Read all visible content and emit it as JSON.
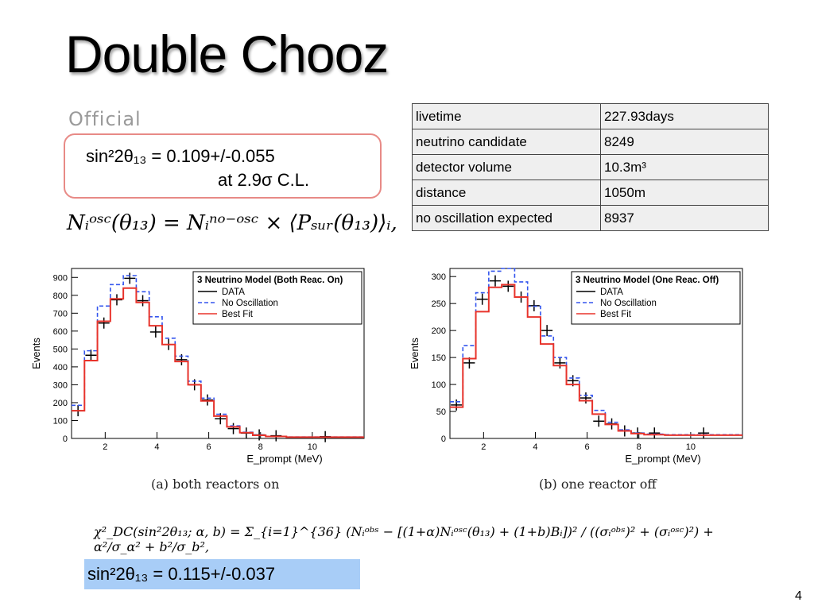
{
  "slide": {
    "title": "Double Chooz",
    "official_label": "Official",
    "result_line1": "sin²2θ₁₃ = 0.109+/-0.055",
    "result_line2": "at 2.9σ C.L.",
    "equation_osc": "Nᵢᵒˢᶜ(θ₁₃) = Nᵢⁿᵒ⁻ᵒˢᶜ × ⟨Pₛᵤᵣ(θ₁₃)⟩ᵢ,",
    "chi2_equation": "χ²_DC(sin²2θ₁₃; α, b) = Σ_{i=1}^{36} (Nᵢᵒᵇˢ − [(1+α)Nᵢᵒˢᶜ(θ₁₃) + (1+b)Bᵢ])² / ((σᵢᵒᵇˢ)² + (σᵢᵒˢᶜ)²) + α²/σ_α² + b²/σ_b²,",
    "final_result": "sin²2θ₁₃ = 0.115+/-0.037",
    "page_number": "4"
  },
  "info_table": {
    "rows": [
      {
        "key": "livetime",
        "value": "227.93days"
      },
      {
        "key": "neutrino candidate",
        "value": "8249"
      },
      {
        "key": "detector volume",
        "value": "10.3m³"
      },
      {
        "key": "distance",
        "value": "1050m"
      },
      {
        "key": "no oscillation expected",
        "value": "8937"
      }
    ]
  },
  "colors": {
    "data": "#000000",
    "no_oscillation": "#3355ee",
    "best_fit": "#e8332b",
    "box_border": "#e88a86",
    "highlight": "#a8cdf7"
  },
  "chart_data": [
    {
      "type": "line",
      "legend_title": "3 Neutrino Model (Both Reac. On)",
      "legend_position": "top-right",
      "xlabel": "E_prompt (MeV)",
      "ylabel": "Events",
      "caption": "(a) both reactors on",
      "xlim": [
        0.7,
        12.0
      ],
      "ylim": [
        0,
        950
      ],
      "xticks": [
        2,
        4,
        6,
        8,
        10
      ],
      "yticks": [
        0,
        100,
        200,
        300,
        400,
        500,
        600,
        700,
        800,
        900
      ],
      "bin_edges": [
        0.7,
        1.2,
        1.7,
        2.2,
        2.7,
        3.2,
        3.7,
        4.2,
        4.7,
        5.2,
        5.7,
        6.2,
        6.7,
        7.2,
        7.7,
        8.2,
        9.0,
        12.0
      ],
      "series": [
        {
          "name": "DATA",
          "style": "points",
          "x": [
            0.95,
            1.45,
            1.95,
            2.45,
            2.95,
            3.45,
            3.95,
            4.45,
            4.95,
            5.45,
            5.95,
            6.45,
            6.95,
            7.45,
            7.95,
            8.6,
            10.5
          ],
          "y": [
            155,
            465,
            645,
            775,
            895,
            770,
            595,
            525,
            440,
            300,
            215,
            110,
            55,
            30,
            20,
            15,
            10
          ]
        },
        {
          "name": "No Oscillation",
          "style": "dashed",
          "values": [
            185,
            490,
            740,
            860,
            910,
            820,
            680,
            560,
            460,
            320,
            225,
            135,
            70,
            35,
            20,
            12,
            8
          ]
        },
        {
          "name": "Best Fit",
          "style": "solid",
          "values": [
            155,
            435,
            655,
            780,
            840,
            760,
            630,
            525,
            430,
            300,
            210,
            125,
            65,
            32,
            18,
            11,
            7
          ]
        }
      ]
    },
    {
      "type": "line",
      "legend_title": "3 Neutrino Model (One Reac. Off)",
      "legend_position": "top-right",
      "xlabel": "E_prompt (MeV)",
      "ylabel": "Events",
      "caption": "(b) one reactor off",
      "xlim": [
        0.7,
        12.0
      ],
      "ylim": [
        0,
        315
      ],
      "xticks": [
        2,
        4,
        6,
        8,
        10
      ],
      "yticks": [
        0,
        50,
        100,
        150,
        200,
        250,
        300
      ],
      "bin_edges": [
        0.7,
        1.2,
        1.7,
        2.2,
        2.7,
        3.2,
        3.7,
        4.2,
        4.7,
        5.2,
        5.7,
        6.2,
        6.7,
        7.2,
        7.7,
        8.2,
        9.0,
        12.0
      ],
      "series": [
        {
          "name": "DATA",
          "style": "points",
          "x": [
            0.95,
            1.45,
            1.95,
            2.45,
            2.95,
            3.45,
            3.95,
            4.45,
            4.95,
            5.45,
            5.95,
            6.45,
            6.95,
            7.45,
            7.95,
            8.6,
            10.5
          ],
          "y": [
            62,
            140,
            258,
            292,
            282,
            262,
            246,
            200,
            140,
            107,
            75,
            32,
            27,
            14,
            10,
            10,
            10
          ]
        },
        {
          "name": "No Oscillation",
          "style": "dashed",
          "values": [
            68,
            172,
            270,
            310,
            315,
            290,
            245,
            190,
            150,
            112,
            80,
            52,
            30,
            16,
            10,
            8,
            7
          ]
        },
        {
          "name": "Best Fit",
          "style": "solid",
          "values": [
            58,
            148,
            235,
            280,
            285,
            262,
            225,
            175,
            135,
            100,
            70,
            45,
            26,
            14,
            9,
            7,
            6
          ]
        }
      ]
    }
  ]
}
